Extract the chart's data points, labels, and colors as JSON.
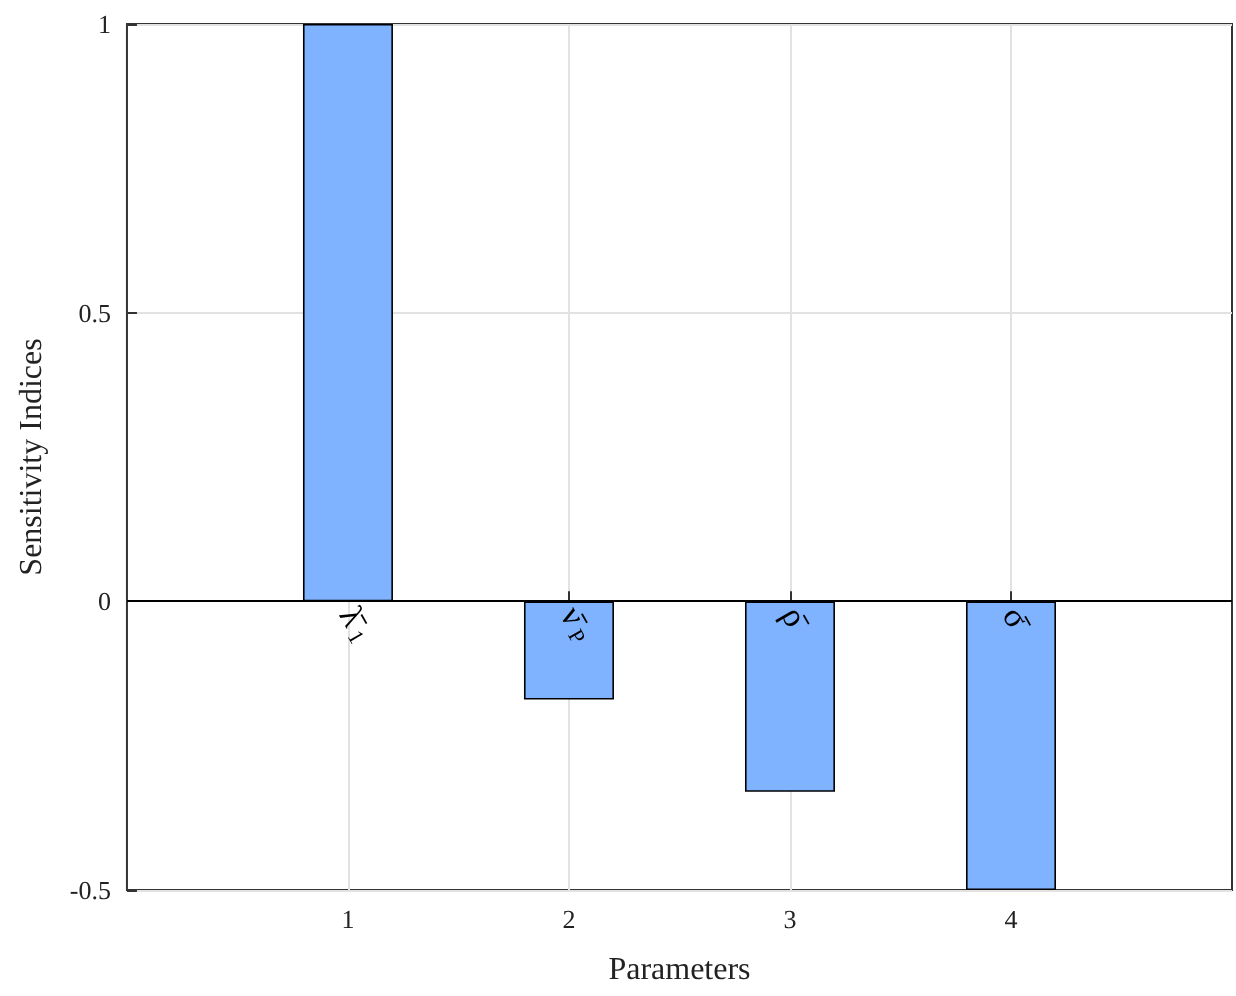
{
  "chart_data": {
    "type": "bar",
    "xlabel": "Parameters",
    "ylabel": "Sensitivity Indices",
    "x": [
      1,
      2,
      3,
      4
    ],
    "values": [
      1,
      -0.17,
      -0.33,
      -0.5
    ],
    "color": "#80b3ff",
    "xlim": [
      0,
      5
    ],
    "xticks": [
      1,
      2,
      3,
      4
    ],
    "ylim": [
      -0.5,
      1
    ],
    "yticks": [
      -0.5,
      0,
      0.5,
      1
    ],
    "grid": true,
    "annotations": [
      {
        "text": "λ̄$_{1}$",
        "x": 1,
        "y": 0
      },
      {
        "text": "ν̄$_{P}$",
        "x": 2,
        "y": 0
      },
      {
        "text": "ρ̄",
        "x": 3,
        "y": 0
      },
      {
        "text": "σ̄",
        "x": 4,
        "y": 0
      }
    ]
  }
}
